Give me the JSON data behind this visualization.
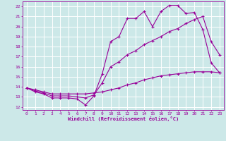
{
  "background_color": "#cce8e8",
  "grid_color": "#ffffff",
  "line_color": "#990099",
  "xlabel": "Windchill (Refroidissement éolien,°C)",
  "ylabel_ticks": [
    12,
    13,
    14,
    15,
    16,
    17,
    18,
    19,
    20,
    21,
    22
  ],
  "xticks": [
    0,
    1,
    2,
    3,
    4,
    5,
    6,
    7,
    8,
    9,
    10,
    11,
    12,
    13,
    14,
    15,
    16,
    17,
    18,
    19,
    20,
    21,
    22,
    23
  ],
  "xlim": [
    -0.5,
    23.5
  ],
  "ylim": [
    11.7,
    22.5
  ],
  "series1_x": [
    0,
    1,
    2,
    3,
    4,
    5,
    6,
    7,
    8,
    9,
    10,
    11,
    12,
    13,
    14,
    15,
    16,
    17,
    18,
    19,
    20,
    21,
    22,
    23
  ],
  "series1_y": [
    13.9,
    13.5,
    13.3,
    12.9,
    12.9,
    12.9,
    12.8,
    12.2,
    13.1,
    15.3,
    18.5,
    19.0,
    20.8,
    20.8,
    21.5,
    20.0,
    21.5,
    22.1,
    22.1,
    21.3,
    21.4,
    19.7,
    16.4,
    15.4
  ],
  "series2_x": [
    0,
    1,
    2,
    3,
    4,
    5,
    6,
    7,
    8,
    9,
    10,
    11,
    12,
    13,
    14,
    15,
    16,
    17,
    18,
    19,
    20,
    21,
    22,
    23
  ],
  "series2_y": [
    13.9,
    13.7,
    13.5,
    13.3,
    13.3,
    13.3,
    13.3,
    13.3,
    13.4,
    13.5,
    13.7,
    13.9,
    14.2,
    14.4,
    14.7,
    14.9,
    15.1,
    15.2,
    15.3,
    15.4,
    15.5,
    15.5,
    15.5,
    15.4
  ],
  "series3_x": [
    0,
    1,
    2,
    3,
    4,
    5,
    6,
    7,
    8,
    9,
    10,
    11,
    12,
    13,
    14,
    15,
    16,
    17,
    18,
    19,
    20,
    21,
    22,
    23
  ],
  "series3_y": [
    13.9,
    13.6,
    13.4,
    13.1,
    13.1,
    13.1,
    13.0,
    12.9,
    13.2,
    14.4,
    16.0,
    16.5,
    17.2,
    17.6,
    18.2,
    18.6,
    19.0,
    19.5,
    19.8,
    20.3,
    20.7,
    21.0,
    18.5,
    17.2
  ]
}
